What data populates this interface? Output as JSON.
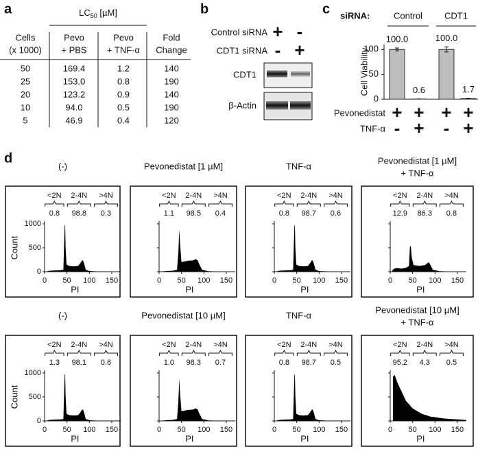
{
  "panels": {
    "a": {
      "label": "a",
      "header": {
        "text": "LC",
        "sub": "50",
        "unit": " [µM]"
      },
      "columns": [
        [
          "Cells",
          "(x 1000)"
        ],
        [
          "Pevo",
          "+ PBS"
        ],
        [
          "Pevo",
          "+ TNF-α"
        ],
        [
          "Fold",
          "Change"
        ]
      ],
      "rows": [
        [
          "50",
          "169.4",
          "1.2",
          "140"
        ],
        [
          "25",
          "153.0",
          "0.8",
          "190"
        ],
        [
          "20",
          "123.2",
          "0.9",
          "140"
        ],
        [
          "10",
          "94.0",
          "0.5",
          "190"
        ],
        [
          "5",
          "46.9",
          "0.4",
          "120"
        ]
      ]
    },
    "b": {
      "label": "b",
      "rows": [
        {
          "name": "Control siRNA",
          "signs": [
            "+",
            "-"
          ]
        },
        {
          "name": "CDT1 siRNA",
          "signs": [
            "-",
            "+"
          ]
        }
      ],
      "blots": [
        "CDT1",
        "β-Actin"
      ]
    },
    "c": {
      "label": "c",
      "sirna_label": "siRNA:",
      "groups": [
        "Control",
        "CDT1"
      ],
      "treatments": [
        {
          "name": "Pevonedistat",
          "signs": [
            "+",
            "+",
            "+",
            "+"
          ]
        },
        {
          "name": "TNF-α",
          "signs": [
            "-",
            "+",
            "-",
            "+"
          ]
        }
      ]
    },
    "d": {
      "label": "d",
      "ylabel": "Count",
      "xlabel": "PI",
      "gates": [
        "<2N",
        "2-4N",
        ">4N"
      ],
      "xlim": [
        0,
        170
      ],
      "ylim": [
        0,
        1000
      ],
      "xticks": [
        0,
        50,
        100,
        150
      ],
      "yticks": [
        0,
        500,
        1000
      ],
      "plots": [
        {
          "title": [
            "(-)"
          ],
          "percents": [
            "0.8",
            "98.8",
            "0.3"
          ]
        },
        {
          "title": [
            "Pevonedistat [1 µM]"
          ],
          "percents": [
            "1.1",
            "98.5",
            "0.4"
          ]
        },
        {
          "title": [
            "TNF-α"
          ],
          "percents": [
            "0.8",
            "98.7",
            "0.6"
          ]
        },
        {
          "title": [
            "Pevonedistat [1 µM]",
            "+ TNF-α"
          ],
          "percents": [
            "12.9",
            "86.3",
            "0.8"
          ]
        },
        {
          "title": [
            "(-)"
          ],
          "percents": [
            "1.3",
            "98.1",
            "0.6"
          ]
        },
        {
          "title": [
            "Pevonedistat [10 µM]"
          ],
          "percents": [
            "1.0",
            "98.3",
            "0.7"
          ]
        },
        {
          "title": [
            "TNF-α"
          ],
          "percents": [
            "0.8",
            "98.7",
            "0.5"
          ]
        },
        {
          "title": [
            "Pevonedistat [10 µM]",
            "+ TNF-α"
          ],
          "percents": [
            "95.2",
            "4.3",
            "0.5"
          ]
        }
      ]
    }
  },
  "chart_data": {
    "type": "bar",
    "ylabel": "Cell Viability",
    "ylim": [
      0,
      110
    ],
    "yticks": [
      0,
      50,
      100
    ],
    "values": [
      100.0,
      0.6,
      100.0,
      1.7
    ],
    "value_labels": [
      "100.0",
      "0.6",
      "100.0",
      "1.7"
    ],
    "errors": [
      3,
      0.2,
      5,
      0.2
    ],
    "color": "#bdbdbd"
  }
}
